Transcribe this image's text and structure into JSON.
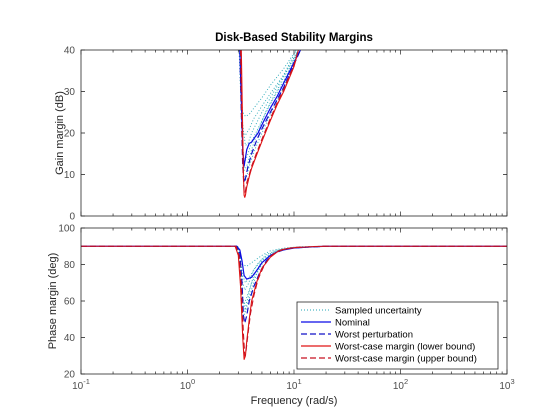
{
  "chart_data": [
    {
      "type": "line",
      "title": "Disk-Based Stability Margins",
      "xlabel": "",
      "ylabel": "Gain margin (dB)",
      "xscale": "log",
      "xlim": [
        0.1,
        1000
      ],
      "ylim": [
        0,
        40
      ],
      "yticks": [
        0,
        10,
        20,
        30,
        40
      ],
      "grid": false,
      "series": [
        {
          "name": "Nominal",
          "x": [
            3.1,
            3.2,
            3.3,
            3.4,
            3.5,
            3.6,
            3.8,
            4.0,
            4.3,
            4.6,
            5.0,
            6.0,
            7.0,
            8.0,
            10.0,
            11.5
          ],
          "y": [
            40,
            28,
            16,
            12,
            14,
            16,
            17.5,
            17.8,
            19,
            20,
            22,
            26,
            29,
            32,
            37,
            40
          ]
        },
        {
          "name": "Worst-case margin (lower bound)",
          "x": [
            3.2,
            3.3,
            3.35,
            3.4,
            3.45,
            3.5,
            3.6,
            3.8,
            4.0,
            4.5,
            5.0,
            6.0,
            7.0,
            8.0,
            10.0,
            11.0
          ],
          "y": [
            40,
            20,
            10,
            5,
            4.5,
            5,
            7,
            9.5,
            11.5,
            15,
            18,
            23,
            27,
            30,
            36,
            40
          ]
        },
        {
          "name": "Worst-case margin (upper bound)",
          "x": [
            3.15,
            3.25,
            3.35,
            3.4,
            3.45,
            3.5,
            3.6,
            3.8,
            4.0,
            4.5,
            5.0,
            6.0,
            7.0,
            8.0,
            10.0,
            11.0
          ],
          "y": [
            40,
            20,
            9,
            6,
            5.5,
            6,
            8,
            10,
            12,
            15.5,
            18.5,
            23.5,
            27.5,
            30.5,
            36.5,
            40
          ]
        },
        {
          "name": "Worst perturbation",
          "x": [
            3.1,
            3.2,
            3.3,
            3.4,
            3.5,
            3.7,
            4.0,
            4.5,
            5.0,
            6.0,
            8.0,
            10.0,
            11.5
          ],
          "y": [
            40,
            25,
            12,
            8,
            9,
            12,
            15,
            18.5,
            21,
            25,
            31,
            36.5,
            40
          ]
        },
        {
          "name": "Sampled uncertainty",
          "curves": [
            {
              "x": [
                3.05,
                3.15,
                3.3,
                3.5,
                3.8,
                4.2,
                5.0,
                6.0,
                8.0,
                10.5
              ],
              "y": [
                40,
                30,
                25,
                24,
                24.5,
                26,
                28.5,
                31.5,
                35.5,
                40
              ]
            },
            {
              "x": [
                3.1,
                3.2,
                3.3,
                3.5,
                3.8,
                4.2,
                5.0,
                6.0,
                8.0,
                10.5
              ],
              "y": [
                40,
                27,
                20,
                19.5,
                21,
                23.5,
                26.5,
                29.5,
                34,
                40
              ]
            },
            {
              "x": [
                3.1,
                3.2,
                3.3,
                3.45,
                3.7,
                4.0,
                5.0,
                6.0,
                8.0,
                11.0
              ],
              "y": [
                40,
                24,
                15,
                13,
                15,
                18,
                23,
                27,
                32.5,
                40
              ]
            },
            {
              "x": [
                3.15,
                3.25,
                3.35,
                3.5,
                3.8,
                4.2,
                5.0,
                6.0,
                8.0,
                11.0
              ],
              "y": [
                40,
                20,
                10,
                8.5,
                12,
                15.5,
                20,
                24.5,
                31,
                40
              ]
            },
            {
              "x": [
                3.1,
                3.2,
                3.3,
                3.5,
                3.7,
                4.0,
                5.0,
                6.5,
                8.5,
                11.0
              ],
              "y": [
                40,
                29,
                22,
                17,
                17.5,
                20,
                25,
                30,
                35,
                40
              ]
            },
            {
              "x": [
                3.1,
                3.25,
                3.4,
                3.6,
                4.0,
                4.5,
                5.5,
                7.0,
                9.0,
                11.0
              ],
              "y": [
                40,
                22,
                11,
                12,
                16,
                20,
                25.5,
                30.5,
                36,
                40
              ]
            }
          ]
        }
      ]
    },
    {
      "type": "line",
      "title": "",
      "xlabel": "Frequency (rad/s)",
      "ylabel": "Phase margin (deg)",
      "xscale": "log",
      "xlim": [
        0.1,
        1000
      ],
      "ylim": [
        20,
        100
      ],
      "yticks": [
        20,
        40,
        60,
        80,
        100
      ],
      "xticks": [
        "10^-1",
        "10^0",
        "10^1",
        "10^2",
        "10^3"
      ],
      "grid": false,
      "legend": "bottom-right",
      "series": [
        {
          "name": "Nominal",
          "x": [
            0.1,
            2.9,
            3.1,
            3.25,
            3.4,
            3.6,
            4.0,
            4.5,
            5.0,
            6.0,
            7.0,
            8.0,
            10.0,
            15.0,
            20.0,
            30.0,
            1000.0
          ],
          "y": [
            90,
            90,
            88,
            82,
            74,
            72,
            73,
            77,
            81,
            85,
            87,
            88,
            89,
            89.7,
            90,
            90,
            90
          ]
        },
        {
          "name": "Worst-case margin (lower bound)",
          "x": [
            0.1,
            2.8,
            3.0,
            3.15,
            3.3,
            3.4,
            3.5,
            3.6,
            3.8,
            4.0,
            4.5,
            5.0,
            6.0,
            7.0,
            8.0,
            10.0,
            15.0,
            20.0,
            1000.0
          ],
          "y": [
            90,
            90,
            85,
            68,
            40,
            28,
            30,
            38,
            50,
            60,
            71,
            78,
            84,
            87,
            88.3,
            89.2,
            89.8,
            90,
            90
          ]
        },
        {
          "name": "Worst-case margin (upper bound)",
          "x": [
            0.1,
            2.85,
            3.05,
            3.2,
            3.35,
            3.45,
            3.55,
            3.7,
            3.9,
            4.2,
            4.6,
            5.2,
            6.0,
            7.0,
            8.0,
            10.0,
            15.0,
            20.0,
            1000.0
          ],
          "y": [
            90,
            90,
            85,
            68,
            42,
            30,
            33,
            42,
            53,
            63,
            72,
            79,
            84.5,
            87.3,
            88.5,
            89.3,
            89.8,
            90,
            90
          ]
        },
        {
          "name": "Worst perturbation",
          "x": [
            0.1,
            2.9,
            3.1,
            3.25,
            3.35,
            3.45,
            3.6,
            3.8,
            4.2,
            4.8,
            5.5,
            6.5,
            8.0,
            10.0,
            20.0,
            1000.0
          ],
          "y": [
            90,
            90,
            86,
            70,
            52,
            48,
            52,
            60,
            68,
            76,
            82,
            86,
            88.2,
            89.2,
            90,
            90
          ]
        },
        {
          "name": "Sampled uncertainty",
          "curves": [
            {
              "x": [
                2.95,
                3.1,
                3.3,
                3.6,
                4.0,
                5.0,
                6.0,
                8.0,
                12.0,
                20.0
              ],
              "y": [
                90,
                87,
                80,
                79,
                81,
                85,
                87.5,
                89,
                89.8,
                90
              ]
            },
            {
              "x": [
                2.95,
                3.1,
                3.3,
                3.5,
                3.8,
                4.5,
                5.5,
                7.0,
                10.0,
                20.0
              ],
              "y": [
                90,
                86,
                74,
                70,
                73,
                80,
                85.5,
                88,
                89.4,
                90
              ]
            },
            {
              "x": [
                2.9,
                3.05,
                3.25,
                3.4,
                3.6,
                4.2,
                5.0,
                6.5,
                9.0,
                20.0
              ],
              "y": [
                90,
                85,
                64,
                58,
                62,
                74,
                82,
                87,
                89,
                90
              ]
            },
            {
              "x": [
                2.9,
                3.05,
                3.2,
                3.35,
                3.55,
                4.0,
                5.0,
                6.5,
                9.0,
                20.0
              ],
              "y": [
                90,
                84,
                60,
                50,
                58,
                70,
                81,
                86.5,
                88.8,
                90
              ]
            },
            {
              "x": [
                2.95,
                3.1,
                3.3,
                3.45,
                3.7,
                4.2,
                5.0,
                6.5,
                9.0,
                20.0
              ],
              "y": [
                90,
                86,
                70,
                66,
                69,
                77,
                83,
                87.2,
                89.1,
                90
              ]
            },
            {
              "x": [
                2.9,
                3.1,
                3.3,
                3.5,
                3.8,
                4.4,
                5.2,
                7.0,
                10.0,
                20.0
              ],
              "y": [
                90,
                85,
                62,
                54,
                62,
                74,
                82,
                87.5,
                89.3,
                90
              ]
            }
          ]
        }
      ]
    }
  ],
  "colors": {
    "Sampled uncertainty": "#22a6b5",
    "Nominal": "#0a0ae6",
    "Worst perturbation": "#1010c8",
    "Worst-case margin (lower bound)": "#e01414",
    "Worst-case margin (upper bound)": "#c81020",
    "axis": "#262626",
    "tick_label": "#4d4d4d"
  },
  "legend_entries": [
    {
      "label": "Sampled uncertainty",
      "style": "dotted"
    },
    {
      "label": "Nominal",
      "style": "solid"
    },
    {
      "label": "Worst perturbation",
      "style": "dashed"
    },
    {
      "label": "Worst-case margin (lower bound)",
      "style": "solid"
    },
    {
      "label": "Worst-case margin (upper bound)",
      "style": "dashed"
    }
  ]
}
